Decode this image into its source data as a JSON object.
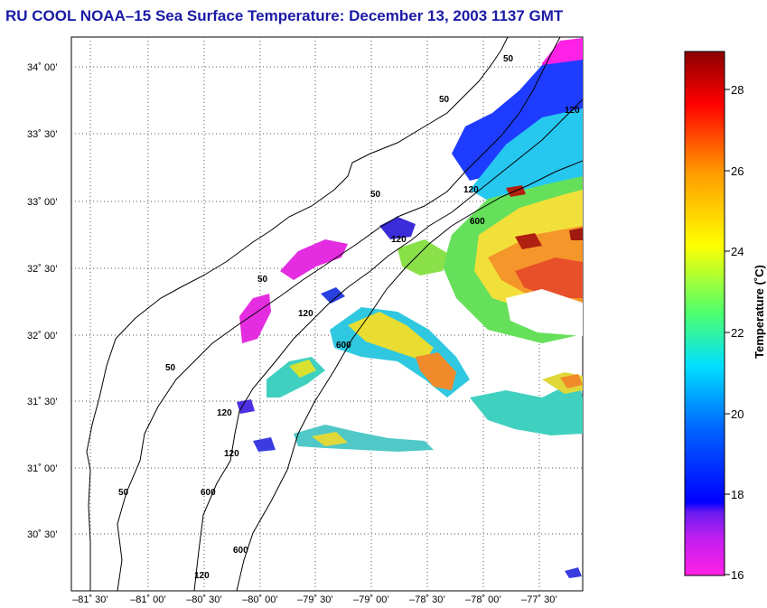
{
  "title": "RU COOL  NOAA–15  Sea Surface Temperature:  December 13, 2003 1137 GMT",
  "map": {
    "lat_range": [
      30.0,
      34.25
    ],
    "lon_range": [
      -81.5,
      -77.3
    ],
    "lat_ticks": [
      {
        "value": 34.0,
        "label": "34˚ 00’"
      },
      {
        "value": 33.5,
        "label": "33˚ 30’"
      },
      {
        "value": 33.0,
        "label": "33˚ 00’"
      },
      {
        "value": 32.5,
        "label": "32˚ 30’"
      },
      {
        "value": 32.0,
        "label": "32˚ 00’"
      },
      {
        "value": 31.5,
        "label": "31˚ 30’"
      },
      {
        "value": 31.0,
        "label": "31˚ 00’"
      },
      {
        "value": 30.5,
        "label": "30˚ 30’"
      }
    ],
    "lon_ticks": [
      {
        "value": -81.5,
        "label": "–81˚ 30’"
      },
      {
        "value": -81.0,
        "label": "–81˚ 00’"
      },
      {
        "value": -80.5,
        "label": "–80˚ 30’"
      },
      {
        "value": -80.0,
        "label": "–80˚ 00’"
      },
      {
        "value": -79.5,
        "label": "–79˚ 30’"
      },
      {
        "value": -79.0,
        "label": "–79˚ 00’"
      },
      {
        "value": -78.5,
        "label": "–78˚ 30’"
      },
      {
        "value": -78.0,
        "label": "–78˚ 00’"
      },
      {
        "value": -77.5,
        "label": "–77˚ 30’"
      }
    ],
    "contour_labels": [
      "50",
      "50",
      "50",
      "50",
      "50",
      "50",
      "120",
      "120",
      "120",
      "120",
      "120",
      "120",
      "120",
      "600",
      "600",
      "600",
      "600"
    ]
  },
  "colorbar": {
    "title": "Temperature (˚C)",
    "range": [
      16,
      29
    ],
    "ticks": [
      "28",
      "26",
      "24",
      "22",
      "20",
      "18",
      "16"
    ],
    "colors": {
      "magenta": "#ff22e6",
      "purple": "#8a2be2",
      "blue": "#0000ff",
      "cyan": "#00e5ff",
      "green": "#4cff4c",
      "yellow": "#ffff00",
      "orange": "#ff8c00",
      "red": "#ff0000",
      "darkred": "#8b0000"
    }
  }
}
